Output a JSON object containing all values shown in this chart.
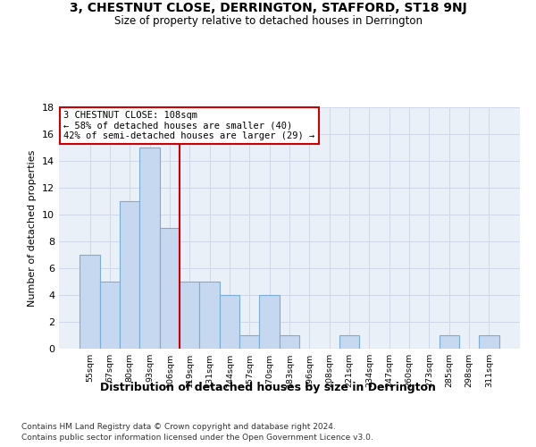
{
  "title": "3, CHESTNUT CLOSE, DERRINGTON, STAFFORD, ST18 9NJ",
  "subtitle": "Size of property relative to detached houses in Derrington",
  "xlabel": "Distribution of detached houses by size in Derrington",
  "ylabel": "Number of detached properties",
  "bin_labels": [
    "55sqm",
    "67sqm",
    "80sqm",
    "93sqm",
    "106sqm",
    "119sqm",
    "131sqm",
    "144sqm",
    "157sqm",
    "170sqm",
    "183sqm",
    "196sqm",
    "208sqm",
    "221sqm",
    "234sqm",
    "247sqm",
    "260sqm",
    "273sqm",
    "285sqm",
    "298sqm",
    "311sqm"
  ],
  "bar_values": [
    7,
    5,
    11,
    15,
    9,
    5,
    5,
    4,
    1,
    4,
    1,
    0,
    0,
    1,
    0,
    0,
    0,
    0,
    1,
    0,
    1
  ],
  "bar_color": "#c5d8f0",
  "bar_edgecolor": "#7aadd4",
  "grid_color": "#d0d8e8",
  "background_color": "#eaf0f8",
  "vline_x_index": 4,
  "vline_color": "#cc0000",
  "annotation_line1": "3 CHESTNUT CLOSE: 108sqm",
  "annotation_line2": "← 58% of detached houses are smaller (40)",
  "annotation_line3": "42% of semi-detached houses are larger (29) →",
  "annotation_box_color": "#ffffff",
  "annotation_box_edgecolor": "#cc0000",
  "ylim": [
    0,
    18
  ],
  "yticks": [
    0,
    2,
    4,
    6,
    8,
    10,
    12,
    14,
    16,
    18
  ],
  "footnote1": "Contains HM Land Registry data © Crown copyright and database right 2024.",
  "footnote2": "Contains public sector information licensed under the Open Government Licence v3.0."
}
